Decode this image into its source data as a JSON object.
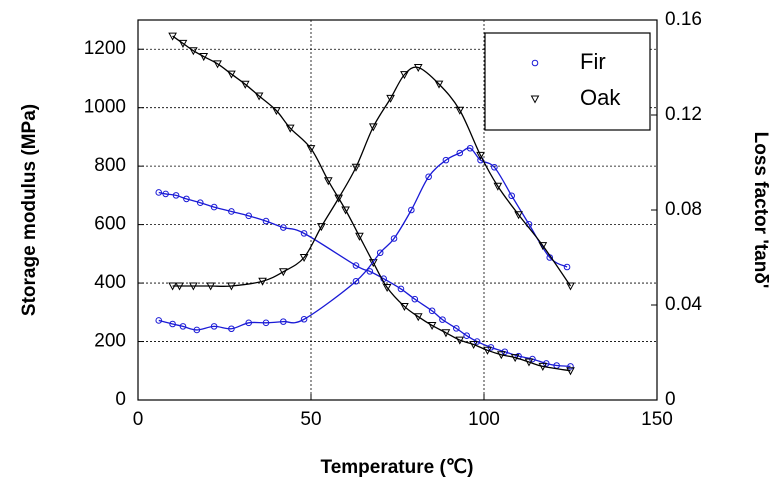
{
  "chart_data": {
    "type": "line",
    "x_label": "Temperature (℃)",
    "y_label": "Storage modulus (MPa)",
    "y2_label": "Loss factor 'tanδ'",
    "xlim": [
      0,
      150
    ],
    "xticks": [
      0,
      50,
      100,
      150
    ],
    "ylim": [
      0,
      1300
    ],
    "yticks": [
      0,
      200,
      400,
      600,
      800,
      1000,
      1200
    ],
    "y2lim": [
      0,
      0.16
    ],
    "y2ticks": [
      0,
      0.04,
      0.08,
      0.12,
      0.16
    ],
    "grid": true,
    "legend": "upper right",
    "series": [
      {
        "name": "Fir",
        "color": "#1a1ad6",
        "marker": "circle",
        "x": [
          6,
          8,
          11,
          14,
          18,
          22,
          27,
          32,
          37,
          42,
          48,
          63,
          67,
          71,
          76,
          80,
          85,
          88,
          92,
          95,
          98,
          102,
          106,
          110,
          114,
          118,
          121,
          125
        ],
        "values": [
          710,
          705,
          700,
          688,
          675,
          660,
          645,
          630,
          612,
          590,
          570,
          460,
          440,
          415,
          380,
          345,
          305,
          275,
          245,
          220,
          200,
          180,
          165,
          150,
          140,
          125,
          118,
          115
        ]
      },
      {
        "name": "Oak",
        "color": "#000000",
        "marker": "triangle",
        "x": [
          10,
          13,
          16,
          19,
          23,
          27,
          31,
          35,
          40,
          44,
          50,
          55,
          60,
          64,
          68,
          72,
          77,
          81,
          85,
          89,
          93,
          97,
          101,
          105,
          109,
          113,
          117,
          125
        ],
        "values": [
          1245,
          1220,
          1195,
          1175,
          1150,
          1115,
          1080,
          1040,
          990,
          930,
          860,
          750,
          650,
          560,
          470,
          385,
          320,
          285,
          255,
          230,
          205,
          190,
          170,
          155,
          145,
          130,
          115,
          100
        ]
      },
      {
        "name": "Fir",
        "color": "#1a1ad6",
        "marker": "circle",
        "axis": "y2",
        "x": [
          6,
          10,
          13,
          17,
          22,
          27,
          32,
          37,
          42,
          48,
          63,
          70,
          74,
          79,
          84,
          89,
          93,
          96,
          99,
          103,
          108,
          113,
          119,
          124
        ],
        "values": [
          0.0335,
          0.032,
          0.031,
          0.0295,
          0.031,
          0.03,
          0.0325,
          0.0325,
          0.033,
          0.034,
          0.05,
          0.062,
          0.068,
          0.08,
          0.094,
          0.101,
          0.104,
          0.106,
          0.101,
          0.098,
          0.086,
          0.074,
          0.06,
          0.056
        ]
      },
      {
        "name": "Oak",
        "color": "#000000",
        "marker": "triangle",
        "axis": "y2",
        "x": [
          10,
          12,
          16,
          21,
          27,
          36,
          42,
          48,
          53,
          58,
          63,
          68,
          73,
          77,
          81,
          87,
          93,
          99,
          104,
          110,
          117,
          125
        ],
        "values": [
          0.048,
          0.048,
          0.048,
          0.048,
          0.048,
          0.05,
          0.054,
          0.06,
          0.073,
          0.085,
          0.098,
          0.115,
          0.127,
          0.137,
          0.14,
          0.133,
          0.122,
          0.103,
          0.09,
          0.078,
          0.065,
          0.048
        ]
      }
    ]
  }
}
